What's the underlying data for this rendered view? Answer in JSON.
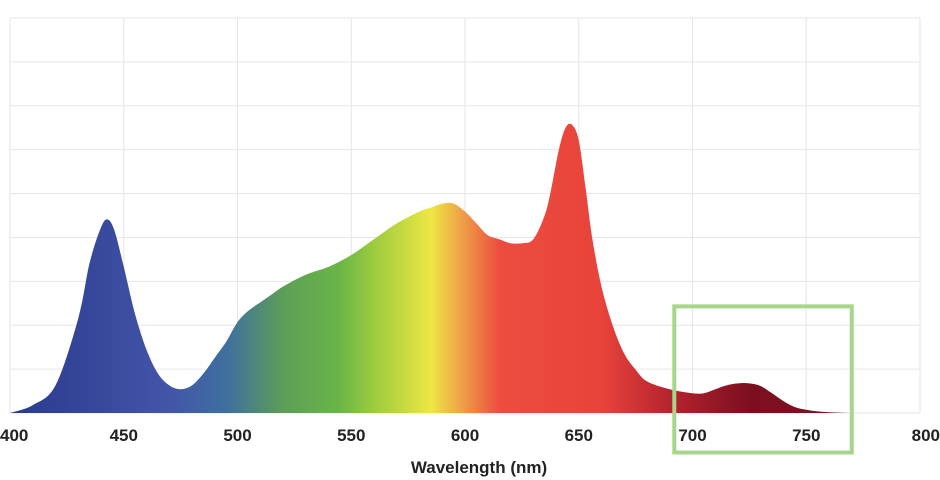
{
  "chart_data": {
    "type": "area",
    "title": "",
    "xlabel": "Wavelength (nm)",
    "ylabel": "",
    "xlim": [
      400,
      800
    ],
    "ylim": [
      0,
      1.0
    ],
    "x_ticks": [
      400,
      450,
      500,
      550,
      600,
      650,
      700,
      750,
      800
    ],
    "x_tick_labels": [
      "400",
      "450",
      "500",
      "550",
      "600",
      "650",
      "700",
      "750",
      "800"
    ],
    "grid": true,
    "y_gridlines": 9,
    "series": [
      {
        "x": [
          400,
          410,
          420,
          430,
          435,
          440,
          443,
          446,
          450,
          455,
          460,
          465,
          470,
          475,
          480,
          485,
          490,
          495,
          500,
          505,
          510,
          515,
          520,
          530,
          540,
          550,
          560,
          570,
          580,
          585,
          590,
          595,
          600,
          605,
          610,
          615,
          620,
          625,
          630,
          635,
          638,
          641,
          644,
          647,
          650,
          653,
          656,
          660,
          665,
          670,
          675,
          680,
          690,
          700,
          705,
          710,
          715,
          720,
          725,
          730,
          735,
          740,
          745,
          750,
          755,
          760,
          770
        ],
        "values": [
          0.0,
          0.02,
          0.07,
          0.24,
          0.38,
          0.47,
          0.49,
          0.46,
          0.37,
          0.25,
          0.16,
          0.1,
          0.07,
          0.06,
          0.07,
          0.1,
          0.14,
          0.18,
          0.23,
          0.26,
          0.28,
          0.3,
          0.32,
          0.35,
          0.37,
          0.4,
          0.44,
          0.48,
          0.51,
          0.52,
          0.53,
          0.53,
          0.51,
          0.48,
          0.45,
          0.44,
          0.43,
          0.43,
          0.44,
          0.5,
          0.57,
          0.66,
          0.72,
          0.73,
          0.69,
          0.57,
          0.44,
          0.32,
          0.22,
          0.15,
          0.11,
          0.08,
          0.06,
          0.05,
          0.05,
          0.06,
          0.07,
          0.075,
          0.075,
          0.068,
          0.05,
          0.03,
          0.015,
          0.008,
          0.004,
          0.002,
          0.0
        ]
      }
    ],
    "gradient_colors": [
      {
        "wl": 400,
        "color": "#2a3a8e"
      },
      {
        "wl": 470,
        "color": "#4355a8"
      },
      {
        "wl": 495,
        "color": "#3f6fa0"
      },
      {
        "wl": 520,
        "color": "#5c9e57"
      },
      {
        "wl": 545,
        "color": "#6ab648"
      },
      {
        "wl": 560,
        "color": "#9ccb3f"
      },
      {
        "wl": 585,
        "color": "#ede743"
      },
      {
        "wl": 600,
        "color": "#ee9948"
      },
      {
        "wl": 615,
        "color": "#ec4d3f"
      },
      {
        "wl": 660,
        "color": "#e8433a"
      },
      {
        "wl": 690,
        "color": "#b5242e"
      },
      {
        "wl": 725,
        "color": "#7c0f1f"
      },
      {
        "wl": 770,
        "color": "#7a1224"
      }
    ],
    "highlight_box": {
      "x_range": [
        692,
        770
      ],
      "y_range": [
        -0.1,
        0.27
      ],
      "color": "#a7d58c"
    }
  }
}
